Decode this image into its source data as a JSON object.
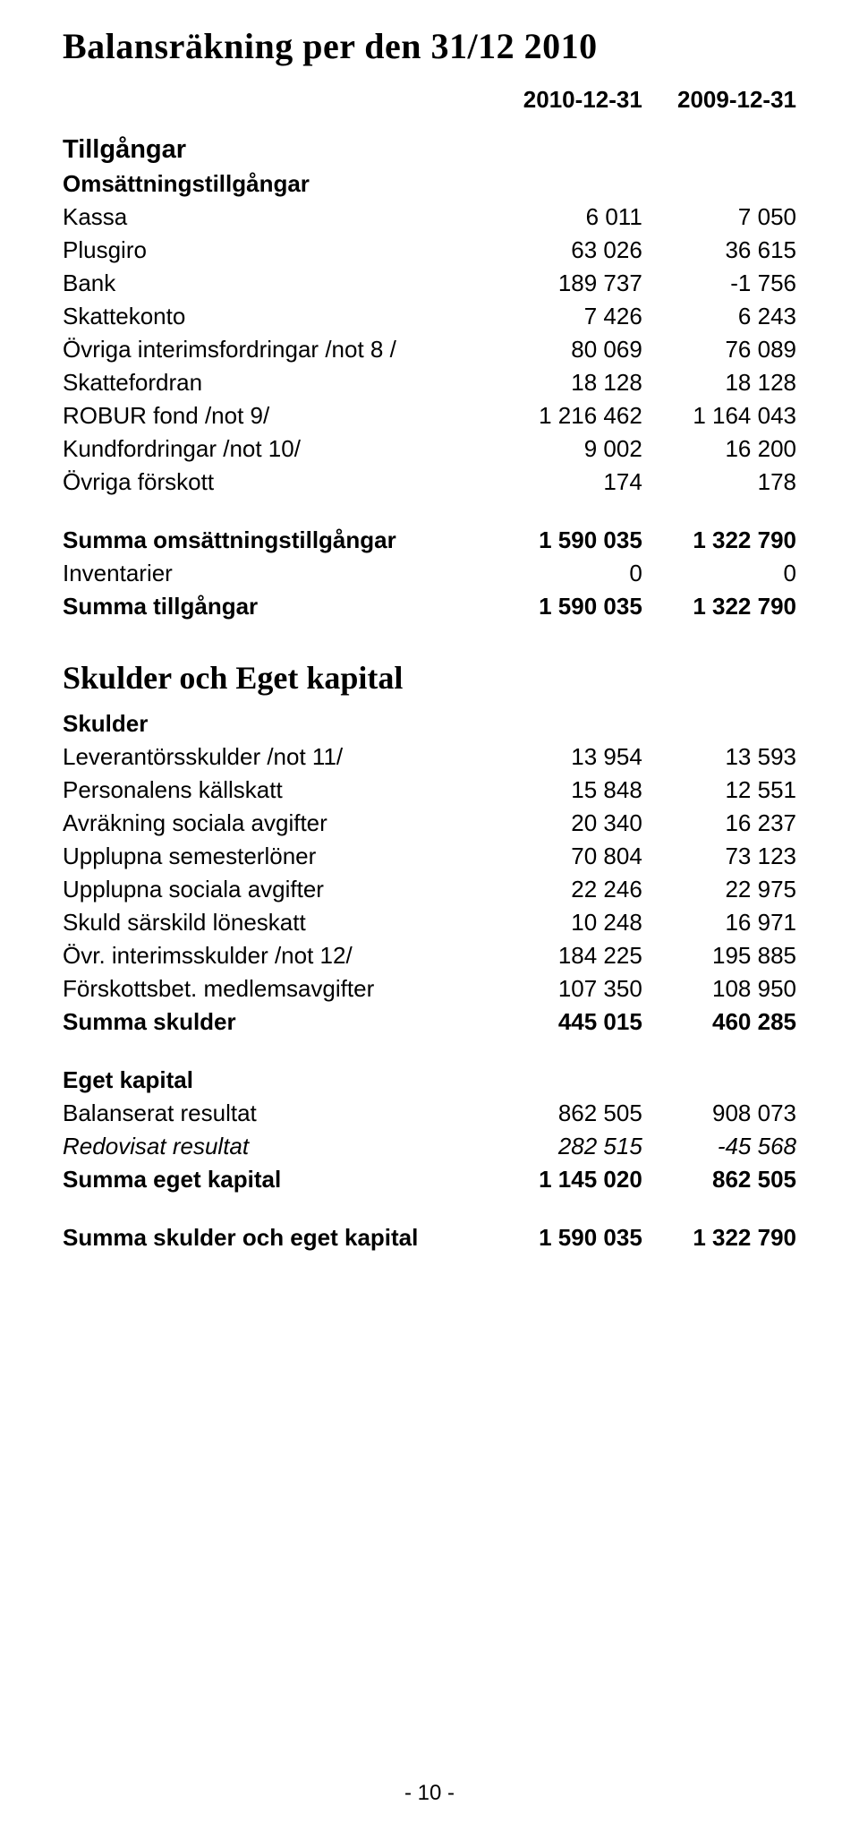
{
  "title": "Balansräkning per den 31/12 2010",
  "headers": {
    "col1": "2010-12-31",
    "col2": "2009-12-31"
  },
  "section1": {
    "heading": "Tillgångar",
    "subheading": "Omsättningstillgångar",
    "rows": [
      {
        "label": "Kassa",
        "v1": "6 011",
        "v2": "7 050"
      },
      {
        "label": "Plusgiro",
        "v1": "63 026",
        "v2": "36 615"
      },
      {
        "label": "Bank",
        "v1": "189 737",
        "v2": "-1 756"
      },
      {
        "label": "Skattekonto",
        "v1": "7 426",
        "v2": "6 243"
      },
      {
        "label": "Övriga interimsfordringar /not 8 /",
        "v1": "80 069",
        "v2": "76 089"
      },
      {
        "label": "Skattefordran",
        "v1": "18 128",
        "v2": "18 128"
      },
      {
        "label": "ROBUR fond /not 9/",
        "v1": "1 216 462",
        "v2": "1 164 043"
      },
      {
        "label": "Kundfordringar /not 10/",
        "v1": "9 002",
        "v2": "16 200"
      },
      {
        "label": "Övriga förskott",
        "v1": "174",
        "v2": "178"
      }
    ],
    "sums": [
      {
        "label": "Summa omsättningstillgångar",
        "v1": "1 590 035",
        "v2": "1 322 790",
        "bold": true
      },
      {
        "label": "Inventarier",
        "v1": "0",
        "v2": "0",
        "bold": false
      },
      {
        "label": "Summa tillgångar",
        "v1": "1 590 035",
        "v2": "1 322 790",
        "bold": true
      }
    ]
  },
  "section2": {
    "heading": "Skulder och Eget kapital",
    "sub1": {
      "subheading": "Skulder",
      "rows": [
        {
          "label": "Leverantörsskulder /not 11/",
          "v1": "13 954",
          "v2": "13 593"
        },
        {
          "label": "Personalens källskatt",
          "v1": "15 848",
          "v2": "12 551"
        },
        {
          "label": "Avräkning sociala avgifter",
          "v1": "20 340",
          "v2": "16 237"
        },
        {
          "label": "Upplupna semesterlöner",
          "v1": "70 804",
          "v2": "73 123"
        },
        {
          "label": "Upplupna sociala avgifter",
          "v1": "22 246",
          "v2": "22 975"
        },
        {
          "label": "Skuld särskild löneskatt",
          "v1": "10 248",
          "v2": "16 971"
        },
        {
          "label": "Övr. interimsskulder /not 12/",
          "v1": "184 225",
          "v2": "195 885"
        },
        {
          "label": "Förskottsbet. medlemsavgifter",
          "v1": "107 350",
          "v2": "108 950"
        }
      ],
      "sum": {
        "label": "Summa skulder",
        "v1": "445 015",
        "v2": "460 285"
      }
    },
    "sub2": {
      "subheading": "Eget kapital",
      "rows": [
        {
          "label": "Balanserat resultat",
          "v1": "862 505",
          "v2": "908 073",
          "style": ""
        },
        {
          "label": "Redovisat resultat",
          "v1": "282 515",
          "v2": "-45 568",
          "style": "italic"
        }
      ],
      "sum": {
        "label": "Summa eget kapital",
        "v1": "1 145 020",
        "v2": "862 505"
      }
    },
    "grand": {
      "label": "Summa skulder och eget kapital",
      "v1": "1 590 035",
      "v2": "1 322 790"
    }
  },
  "pagenum": "- 10 -"
}
